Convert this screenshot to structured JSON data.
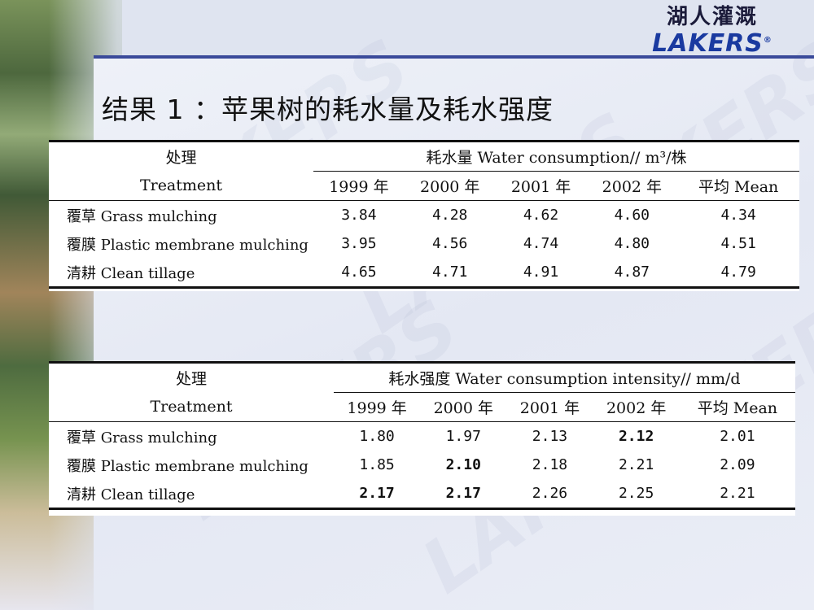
{
  "logo": {
    "chinese": "湖人灌溉",
    "english": "LAKERS",
    "mark": "®",
    "watermark": "LAKERS"
  },
  "title": "结果 1 ：苹果树的耗水量及耗水强度",
  "table1": {
    "label_header_cn": "处理",
    "label_header_en": "Treatment",
    "group_header": "耗水量 Water consumption// m³/株",
    "columns": [
      "1999 年",
      "2000 年",
      "2001 年",
      "2002 年",
      "平均 Mean"
    ],
    "rows": [
      {
        "label": "覆草 Grass mulching",
        "values": [
          "3.84",
          "4.28",
          "4.62",
          "4.60",
          "4.34"
        ]
      },
      {
        "label": "覆膜 Plastic membrane mulching",
        "values": [
          "3.95",
          "4.56",
          "4.74",
          "4.80",
          "4.51"
        ]
      },
      {
        "label": "清耕 Clean tillage",
        "values": [
          "4.65",
          "4.71",
          "4.91",
          "4.87",
          "4.79"
        ]
      }
    ]
  },
  "table2": {
    "label_header_cn": "处理",
    "label_header_en": "Treatment",
    "group_header": "耗水强度 Water consumption intensity// mm/d",
    "columns": [
      "1999 年",
      "2000 年",
      "2001 年",
      "2002 年",
      "平均 Mean"
    ],
    "rows": [
      {
        "label": "覆草 Grass mulching",
        "values": [
          "1.80",
          "1.97",
          "2.13",
          "2.12",
          "2.01"
        ]
      },
      {
        "label": "覆膜 Plastic membrane mulching",
        "values": [
          "1.85",
          "2.10",
          "2.18",
          "2.21",
          "2.09"
        ]
      },
      {
        "label": "清耕 Clean tillage",
        "values": [
          "2.17",
          "2.17",
          "2.26",
          "2.25",
          "2.21"
        ]
      }
    ]
  }
}
